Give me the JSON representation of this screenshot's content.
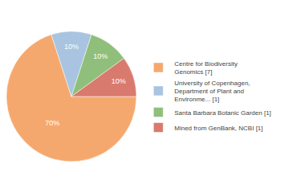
{
  "chart_data": {
    "type": "pie",
    "categories": [
      "Centre for Biodiversity\nGenomics [7]",
      "University of Copenhagen,\nDepartment of Plant and\nEnvironme... [1]",
      "Santa Barbara Botanic Garden [1]",
      "Mined from GenBank, NCBI [1]"
    ],
    "values": [
      70,
      10,
      10,
      10
    ],
    "value_labels": [
      "70%",
      "10%",
      "10%",
      "10%"
    ],
    "colors": [
      "#F5A86E",
      "#A8C4E0",
      "#8FBF7A",
      "#D97A6E"
    ],
    "data_labels": true,
    "legend": "right"
  }
}
